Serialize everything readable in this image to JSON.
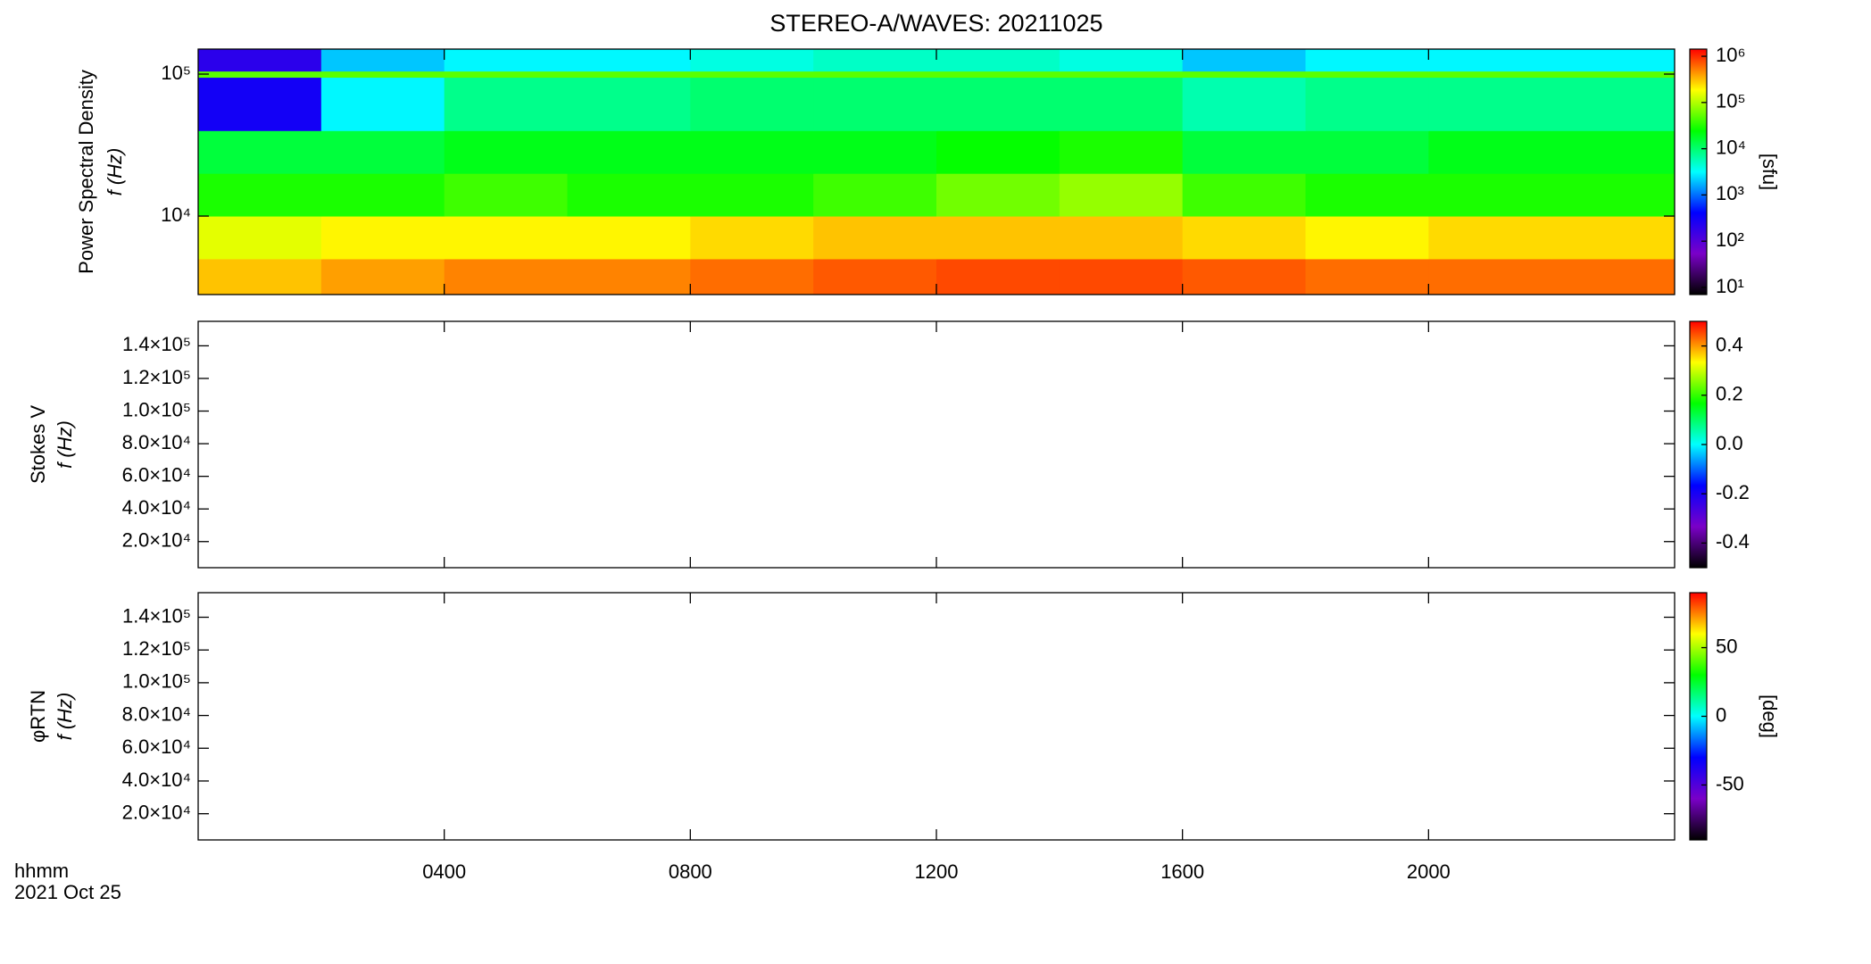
{
  "chart_data": [
    {
      "type": "heatmap",
      "title": "STEREO-A/WAVES: 20211025",
      "ylabel": [
        "Power Spectral Density",
        "f (Hz)"
      ],
      "log": true,
      "ylim": [
        2800,
        150000
      ],
      "yticks": [
        {
          "value": 10000,
          "label": "10⁴"
        },
        {
          "value": 100000,
          "label": "10⁵"
        }
      ],
      "x_edges": [
        0,
        2,
        4,
        6,
        8,
        10,
        12,
        14,
        16,
        18,
        20,
        22,
        24
      ],
      "y_edges": [
        2800,
        5000,
        10000,
        20000,
        40000,
        95000,
        105000,
        150000
      ],
      "z": [
        [
          300000,
          400000,
          500000,
          500000,
          600000,
          700000,
          800000,
          800000,
          700000,
          600000,
          600000,
          600000
        ],
        [
          150000,
          200000,
          200000,
          200000,
          250000,
          300000,
          300000,
          300000,
          250000,
          200000,
          250000,
          250000
        ],
        [
          30000,
          30000,
          40000,
          30000,
          30000,
          40000,
          60000,
          80000,
          40000,
          30000,
          30000,
          30000
        ],
        [
          15000,
          15000,
          20000,
          20000,
          20000,
          20000,
          25000,
          30000,
          15000,
          15000,
          20000,
          20000
        ],
        [
          300,
          3000,
          8000,
          8000,
          10000,
          10000,
          10000,
          10000,
          6000,
          8000,
          8000,
          8000
        ],
        [
          50000,
          50000,
          50000,
          50000,
          50000,
          50000,
          50000,
          50000,
          50000,
          50000,
          50000,
          50000
        ],
        [
          200,
          2000,
          3000,
          3000,
          4000,
          5000,
          5000,
          4000,
          2000,
          3000,
          3000,
          3000
        ]
      ],
      "colormap": [
        "#000000",
        "#7a00c8",
        "#0000ff",
        "#00ffff",
        "#00ff00",
        "#ffff00",
        "#ff0000"
      ],
      "colorbar": {
        "log": true,
        "lim": [
          7,
          1430000
        ],
        "label": "[sfu]",
        "ticks": [
          {
            "value": 10,
            "label": "10¹"
          },
          {
            "value": 100,
            "label": "10²"
          },
          {
            "value": 1000,
            "label": "10³"
          },
          {
            "value": 10000,
            "label": "10⁴"
          },
          {
            "value": 100000,
            "label": "10⁵"
          },
          {
            "value": 1000000,
            "label": "10⁶"
          }
        ]
      }
    },
    {
      "type": "heatmap",
      "ylabel": [
        "Stokes V",
        "f (Hz)"
      ],
      "log": false,
      "ylim": [
        4000,
        155000
      ],
      "yticks": [
        {
          "value": 20000,
          "label": "2.0×10⁴"
        },
        {
          "value": 40000,
          "label": "4.0×10⁴"
        },
        {
          "value": 60000,
          "label": "6.0×10⁴"
        },
        {
          "value": 80000,
          "label": "8.0×10⁴"
        },
        {
          "value": 100000,
          "label": "1.0×10⁵"
        },
        {
          "value": 120000,
          "label": "1.2×10⁵"
        },
        {
          "value": 140000,
          "label": "1.4×10⁵"
        }
      ],
      "colormap": [
        "#000000",
        "#7a00c8",
        "#0000ff",
        "#00ffff",
        "#00ff00",
        "#ffff00",
        "#ff0000"
      ],
      "colorbar": {
        "log": false,
        "lim": [
          -0.5,
          0.5
        ],
        "ticks": [
          {
            "value": -0.4,
            "label": "-0.4"
          },
          {
            "value": -0.2,
            "label": "-0.2"
          },
          {
            "value": 0,
            "label": "0.0"
          },
          {
            "value": 0.2,
            "label": "0.2"
          },
          {
            "value": 0.4,
            "label": "0.4"
          }
        ]
      }
    },
    {
      "type": "heatmap",
      "ylabel": [
        "φRTN",
        "f (Hz)"
      ],
      "log": false,
      "ylim": [
        4000,
        155000
      ],
      "yticks": [
        {
          "value": 20000,
          "label": "2.0×10⁴"
        },
        {
          "value": 40000,
          "label": "4.0×10⁴"
        },
        {
          "value": 60000,
          "label": "6.0×10⁴"
        },
        {
          "value": 80000,
          "label": "8.0×10⁴"
        },
        {
          "value": 100000,
          "label": "1.0×10⁵"
        },
        {
          "value": 120000,
          "label": "1.2×10⁵"
        },
        {
          "value": 140000,
          "label": "1.4×10⁵"
        }
      ],
      "xlim": [
        0,
        24
      ],
      "xticks": [
        {
          "value": 4,
          "label": "0400"
        },
        {
          "value": 8,
          "label": "0800"
        },
        {
          "value": 12,
          "label": "1200"
        },
        {
          "value": 16,
          "label": "1600"
        },
        {
          "value": 20,
          "label": "2000"
        }
      ],
      "xlabel": [
        "hhmm",
        "2021 Oct 25"
      ],
      "colormap": [
        "#000000",
        "#7a00c8",
        "#0000ff",
        "#00ffff",
        "#00ff00",
        "#ffff00",
        "#ff0000"
      ],
      "colorbar": {
        "log": false,
        "lim": [
          -90,
          90
        ],
        "label": "[deg]",
        "ticks": [
          -50,
          0,
          50
        ]
      }
    }
  ]
}
